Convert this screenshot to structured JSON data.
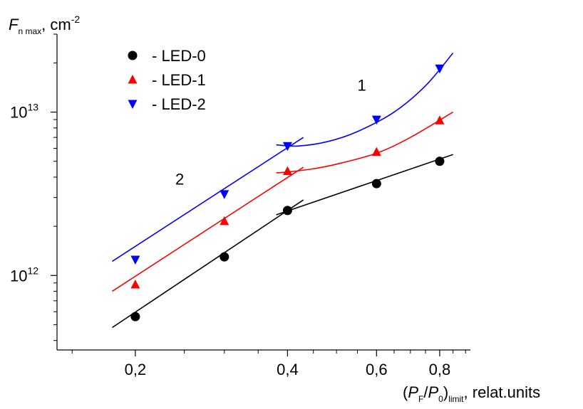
{
  "chart_data": {
    "type": "scatter",
    "x_scale": "log",
    "y_scale": "log",
    "xlim": [
      0.14,
      0.92
    ],
    "ylim": [
      350000000000.0,
      30000000000000.0
    ],
    "grid": false,
    "legend_placement": "top-left",
    "ylabel": {
      "main": "F",
      "sub": "n max",
      "rest": ", cm",
      "sup": "-2"
    },
    "xlabel": {
      "open": "(P",
      "sub1": "F",
      "slash": "/P",
      "sub2": "0",
      "close": ")",
      "sub3": "limit",
      "rest": ", relat.units"
    },
    "x_ticks": [
      {
        "value": 0.2,
        "label": "0,2"
      },
      {
        "value": 0.4,
        "label": "0,4"
      },
      {
        "value": 0.6,
        "label": "0,6"
      },
      {
        "value": 0.8,
        "label": "0,8"
      }
    ],
    "x_minor_ticks": [
      0.15,
      0.25,
      0.3,
      0.35,
      0.45,
      0.5,
      0.55,
      0.65,
      0.7,
      0.75,
      0.85,
      0.9
    ],
    "y_ticks": [
      {
        "value": 1000000000000.0,
        "base": "10",
        "exp": "12"
      },
      {
        "value": 10000000000000.0,
        "base": "10",
        "exp": "13"
      }
    ],
    "y_minor_ticks": [
      400000000000.0,
      500000000000.0,
      600000000000.0,
      700000000000.0,
      800000000000.0,
      900000000000.0,
      2000000000000.0,
      3000000000000.0,
      4000000000000.0,
      5000000000000.0,
      6000000000000.0,
      7000000000000.0,
      8000000000000.0,
      9000000000000.0,
      20000000000000.0,
      30000000000000.0
    ],
    "series": [
      {
        "name": "- LED-0",
        "marker": "circle",
        "color": "#000000",
        "line_color": "#000000",
        "x": [
          0.2,
          0.3,
          0.4,
          0.6,
          0.8
        ],
        "y": [
          560000000000.0,
          1300000000000.0,
          2500000000000.0,
          3650000000000.0,
          5000000000000.0
        ]
      },
      {
        "name": "- LED-1",
        "marker": "triangle-up",
        "color": "#ff0000",
        "line_color": "#ff0000",
        "x": [
          0.2,
          0.3,
          0.4,
          0.6,
          0.8
        ],
        "y": [
          880000000000.0,
          2150000000000.0,
          4350000000000.0,
          5700000000000.0,
          8900000000000.0
        ]
      },
      {
        "name": "- LED-2",
        "marker": "triangle-down",
        "color": "#0000ff",
        "line_color": "#0000ff",
        "x": [
          0.2,
          0.3,
          0.4,
          0.6,
          0.8
        ],
        "y": [
          1250000000000.0,
          3150000000000.0,
          6200000000000.0,
          9000000000000.0,
          18500000000000.0
        ]
      }
    ],
    "fit_lines": [
      {
        "color": "#000000",
        "points": [
          [
            0.18,
            480000000000.0
          ],
          [
            0.43,
            2900000000000.0
          ]
        ]
      },
      {
        "color": "#000000",
        "points": [
          [
            0.38,
            2350000000000.0
          ],
          [
            0.85,
            5500000000000.0
          ]
        ]
      },
      {
        "color": "#ff0000",
        "points": [
          [
            0.18,
            800000000000.0
          ],
          [
            0.43,
            4600000000000.0
          ]
        ]
      },
      {
        "color": "#ff0000",
        "points": [
          [
            0.38,
            4250000000000.0
          ],
          [
            0.4,
            4300000000000.0
          ],
          [
            0.45,
            4500000000000.0
          ],
          [
            0.5,
            4800000000000.0
          ],
          [
            0.6,
            5600000000000.0
          ],
          [
            0.7,
            7000000000000.0
          ],
          [
            0.85,
            10000000000000.0
          ]
        ]
      },
      {
        "color": "#0000ff",
        "points": [
          [
            0.18,
            1220000000000.0
          ],
          [
            0.43,
            7000000000000.0
          ]
        ]
      },
      {
        "color": "#0000ff",
        "points": [
          [
            0.38,
            6300000000000.0
          ],
          [
            0.42,
            6200000000000.0
          ],
          [
            0.48,
            6600000000000.0
          ],
          [
            0.55,
            7600000000000.0
          ],
          [
            0.65,
            10000000000000.0
          ],
          [
            0.75,
            14500000000000.0
          ],
          [
            0.85,
            23000000000000.0
          ]
        ]
      }
    ],
    "annotations": [
      {
        "text": "1",
        "x": 0.55,
        "y": 13500000000000.0
      },
      {
        "text": "2",
        "x": 0.24,
        "y": 3600000000000.0
      }
    ]
  }
}
